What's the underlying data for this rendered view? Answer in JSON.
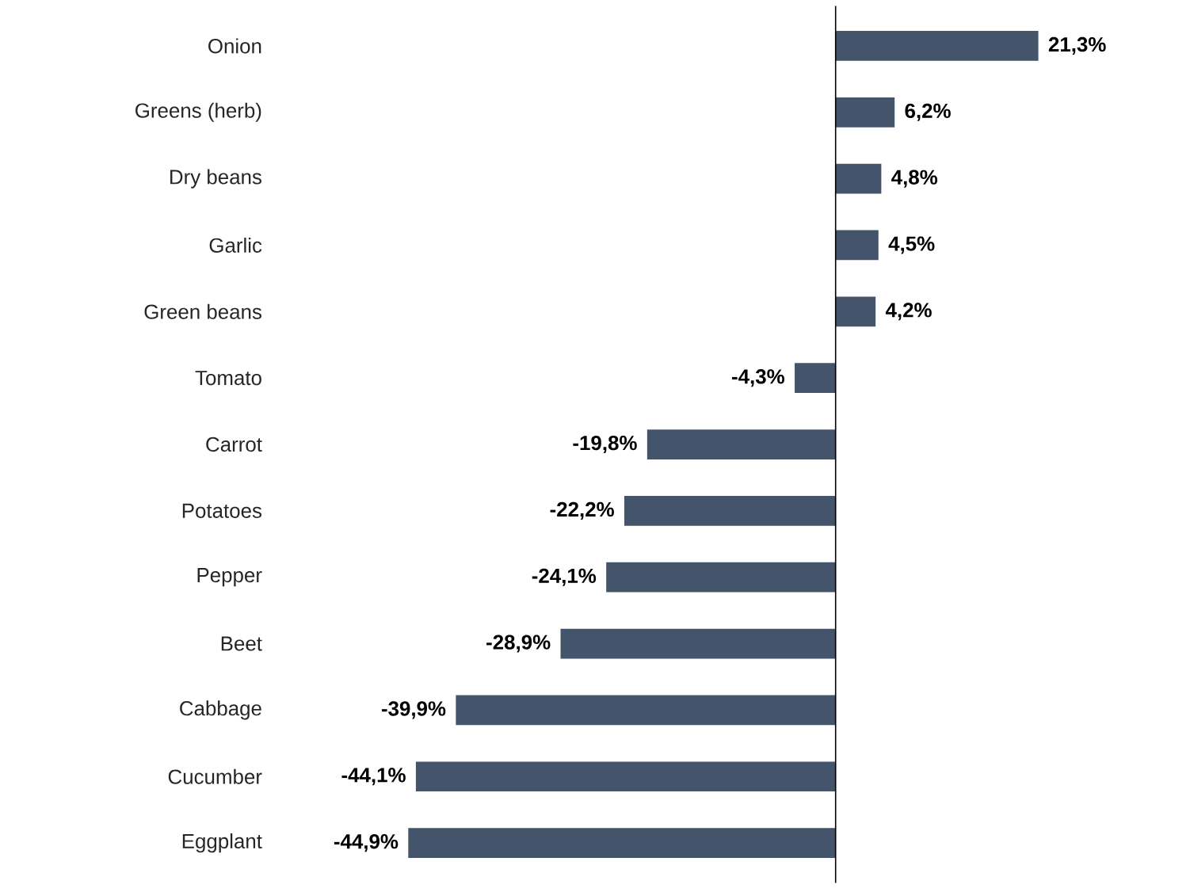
{
  "chart_data": {
    "type": "bar",
    "orientation": "horizontal",
    "categories": [
      "Onion",
      "Greens (herb)",
      "Dry beans",
      "Garlic",
      "Green beans",
      "Tomato",
      "Carrot",
      "Potatoes",
      "Pepper",
      "Beet",
      "Cabbage",
      "Cucumber",
      "Eggplant"
    ],
    "values": [
      21.3,
      6.2,
      4.8,
      4.5,
      4.2,
      -4.3,
      -19.8,
      -22.2,
      -24.1,
      -28.9,
      -39.9,
      -44.1,
      -44.9
    ],
    "value_labels": [
      "21,3%",
      "6,2%",
      "4,8%",
      "4,5%",
      "4,2%",
      "-4,3%",
      "-19,8%",
      "-22,2%",
      "-24,1%",
      "-28,9%",
      "-39,9%",
      "-44,1%",
      "-44,9%"
    ],
    "color": "#44546a"
  }
}
